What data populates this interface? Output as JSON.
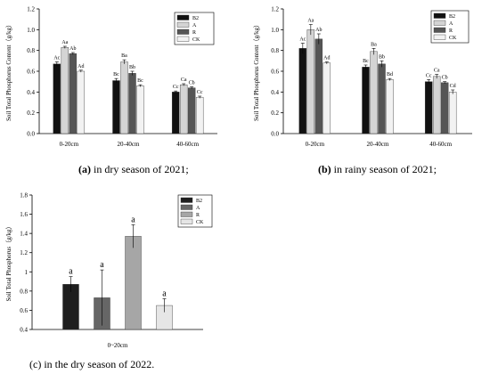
{
  "colors": {
    "B2": "#111111",
    "A": "#d4d4d4",
    "R": "#555555",
    "CK": "#f2f2f2",
    "c_B2": "#1e1e1e",
    "c_A": "#666666",
    "c_R": "#a6a6a6",
    "c_CK": "#e6e6e6"
  },
  "chart_data": [
    {
      "type": "bar",
      "panel_id": "a",
      "ylabel": "Soil Total Phosphorus Content（g/kg）",
      "xlabel": "",
      "ylim": [
        0,
        1.2
      ],
      "yticks": [
        "0.0",
        "0.2",
        "0.4",
        "0.6",
        "0.8",
        "1.0",
        "1.2"
      ],
      "categories": [
        "0-20cm",
        "20-40cm",
        "40-60cm"
      ],
      "legend_position": "top-right",
      "series": [
        {
          "name": "B2",
          "values": [
            0.67,
            0.51,
            0.4
          ],
          "errors": [
            0.02,
            0.02,
            0.01
          ],
          "labels": [
            "Ac",
            "Bc",
            "Cc"
          ]
        },
        {
          "name": "A",
          "values": [
            0.83,
            0.69,
            0.47
          ],
          "errors": [
            0.01,
            0.02,
            0.01
          ],
          "labels": [
            "Aa",
            "Ba",
            "Ca"
          ]
        },
        {
          "name": "R",
          "values": [
            0.77,
            0.58,
            0.44
          ],
          "errors": [
            0.01,
            0.02,
            0.01
          ],
          "labels": [
            "Ab",
            "Bb",
            "Cb"
          ]
        },
        {
          "name": "CK",
          "values": [
            0.6,
            0.46,
            0.35
          ],
          "errors": [
            0.01,
            0.01,
            0.01
          ],
          "labels": [
            "Ad",
            "Bc",
            "Cc"
          ]
        }
      ],
      "caption_bold": "(a)",
      "caption_rest": " in dry season of 2021;"
    },
    {
      "type": "bar",
      "panel_id": "b",
      "ylabel": "Soil Total Phosphorus Content（g/kg）",
      "xlabel": "",
      "ylim": [
        0,
        1.2
      ],
      "yticks": [
        "0.0",
        "0.2",
        "0.4",
        "0.6",
        "0.8",
        "1.0",
        "1.2"
      ],
      "categories": [
        "0-20cm",
        "20-40cm",
        "40-60cm"
      ],
      "legend_position": "top-right",
      "series": [
        {
          "name": "B2",
          "values": [
            0.82,
            0.64,
            0.5
          ],
          "errors": [
            0.05,
            0.02,
            0.02
          ],
          "labels": [
            "Ac",
            "Bc",
            "Cc"
          ]
        },
        {
          "name": "A",
          "values": [
            1.0,
            0.79,
            0.55
          ],
          "errors": [
            0.05,
            0.03,
            0.02
          ],
          "labels": [
            "Aa",
            "Ba",
            "Ca"
          ]
        },
        {
          "name": "R",
          "values": [
            0.91,
            0.67,
            0.49
          ],
          "errors": [
            0.05,
            0.03,
            0.01
          ],
          "labels": [
            "Ab",
            "Bb",
            "Cb"
          ]
        },
        {
          "name": "CK",
          "values": [
            0.68,
            0.52,
            0.4
          ],
          "errors": [
            0.01,
            0.01,
            0.02
          ],
          "labels": [
            "Ad",
            "Bd",
            "Cd"
          ]
        }
      ],
      "caption_bold": "(b)",
      "caption_rest": " in rainy season of 2021;"
    },
    {
      "type": "bar",
      "panel_id": "c",
      "ylabel": "Soil Total Phosphorus（g/kg）",
      "xlabel": "",
      "ylim": [
        0.4,
        1.8
      ],
      "yticks": [
        "0.4",
        "0.6",
        "0.8",
        "1",
        "1.2",
        "1.4",
        "1.6",
        "1.8"
      ],
      "categories": [
        "0~20cm"
      ],
      "legend_position": "top-right",
      "series": [
        {
          "name": "B2",
          "values": [
            0.87
          ],
          "errors": [
            0.08
          ],
          "labels": [
            "a"
          ]
        },
        {
          "name": "A",
          "values": [
            0.73
          ],
          "errors": [
            0.29
          ],
          "labels": [
            "a"
          ]
        },
        {
          "name": "R",
          "values": [
            1.37
          ],
          "errors": [
            0.12
          ],
          "labels": [
            "a"
          ]
        },
        {
          "name": "CK",
          "values": [
            0.65
          ],
          "errors": [
            0.07
          ],
          "labels": [
            "a"
          ]
        }
      ],
      "caption_bold": "",
      "caption_rest": "(c) in the dry season of 2022."
    }
  ]
}
